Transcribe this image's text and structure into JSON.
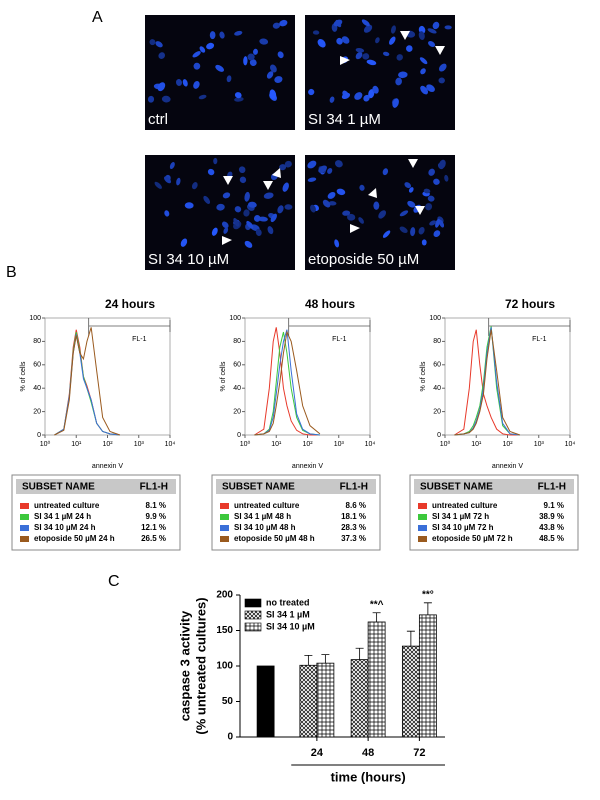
{
  "panel_labels": [
    "A",
    "B",
    "C"
  ],
  "images": [
    {
      "label": "ctrl"
    },
    {
      "label": "SI 34 1 µM"
    },
    {
      "label": "SI 34 10 µM"
    },
    {
      "label": "etoposide 50 µM"
    }
  ],
  "tables": [
    {
      "header": [
        "SUBSET NAME",
        "FL1-H"
      ],
      "rows": [
        [
          "untreated culture",
          "8.1 %"
        ],
        [
          "SI 34 1 µM 24 h",
          "9.9 %"
        ],
        [
          "SI 34 10 µM 24 h",
          "12.1 %"
        ],
        [
          "etoposide 50 µM 24 h",
          "26.5 %"
        ]
      ]
    },
    {
      "header": [
        "SUBSET NAME",
        "FL1-H"
      ],
      "rows": [
        [
          "untreated culture",
          "8.6 %"
        ],
        [
          "SI 34 1 µM 48 h",
          "18.1 %"
        ],
        [
          "SI 34 10 µM 48 h",
          "28.3 %"
        ],
        [
          "etoposide 50 µM 48 h",
          "37.3 %"
        ]
      ]
    },
    {
      "header": [
        "SUBSET NAME",
        "FL1-H"
      ],
      "rows": [
        [
          "untreated culture",
          "9.1 %"
        ],
        [
          "SI 34 1 µM 72 h",
          "38.9 %"
        ],
        [
          "SI 34 10 µM 72 h",
          "43.8 %"
        ],
        [
          "etoposide 50 µM 72 h",
          "48.5 %"
        ]
      ]
    }
  ],
  "chart_data": [
    {
      "type": "line",
      "title": "24 hours",
      "xlabel": "annexin V",
      "ylabel": "% of cells",
      "log_x": true,
      "xlim": [
        1,
        10000
      ],
      "xticks": [
        {
          "value": 1,
          "label": "10⁰"
        },
        {
          "value": 10,
          "label": "10¹"
        },
        {
          "value": 100,
          "label": "10²"
        },
        {
          "value": 1000,
          "label": "10³"
        },
        {
          "value": 10000,
          "label": "10⁴"
        }
      ],
      "ylim": [
        0,
        100
      ],
      "yticks": [
        0,
        20,
        40,
        60,
        80,
        100
      ],
      "gate": {
        "label": "FL-1",
        "range": [
          25,
          10000
        ]
      },
      "x": [
        2,
        4,
        6,
        8,
        10,
        13,
        17,
        22,
        30,
        45,
        70,
        120,
        250
      ],
      "series": [
        {
          "color": "#e8392a",
          "values": [
            0,
            5,
            35,
            75,
            90,
            75,
            50,
            42,
            30,
            10,
            3,
            1,
            0
          ]
        },
        {
          "color": "#3cc83c",
          "values": [
            0,
            5,
            33,
            72,
            88,
            72,
            50,
            40,
            28,
            10,
            3,
            1,
            0
          ]
        },
        {
          "color": "#3a6fd8",
          "values": [
            0,
            5,
            33,
            70,
            86,
            70,
            48,
            40,
            30,
            10,
            3,
            1,
            0
          ]
        },
        {
          "color": "#9a5a1e",
          "values": [
            0,
            4,
            30,
            70,
            85,
            70,
            65,
            80,
            92,
            55,
            15,
            3,
            0
          ]
        }
      ]
    },
    {
      "type": "line",
      "title": "48 hours",
      "xlabel": "annexin V",
      "ylabel": "% of cells",
      "log_x": true,
      "xlim": [
        1,
        10000
      ],
      "xticks": [
        {
          "value": 1,
          "label": "10⁰"
        },
        {
          "value": 10,
          "label": "10¹"
        },
        {
          "value": 100,
          "label": "10²"
        },
        {
          "value": 1000,
          "label": "10³"
        },
        {
          "value": 10000,
          "label": "10⁴"
        }
      ],
      "ylim": [
        0,
        100
      ],
      "yticks": [
        0,
        20,
        40,
        60,
        80,
        100
      ],
      "gate": {
        "label": "FL-1",
        "range": [
          25,
          10000
        ]
      },
      "x": [
        2,
        4,
        6,
        8,
        10,
        13,
        17,
        22,
        30,
        45,
        70,
        120,
        250
      ],
      "series": [
        {
          "color": "#e8392a",
          "values": [
            0,
            5,
            40,
            80,
            92,
            70,
            40,
            25,
            12,
            4,
            1,
            0,
            0
          ]
        },
        {
          "color": "#3cc83c",
          "values": [
            0,
            1,
            5,
            20,
            45,
            75,
            88,
            70,
            40,
            15,
            4,
            1,
            0
          ]
        },
        {
          "color": "#3a6fd8",
          "values": [
            0,
            1,
            4,
            15,
            35,
            60,
            80,
            90,
            55,
            18,
            5,
            1,
            0
          ]
        },
        {
          "color": "#9a5a1e",
          "values": [
            0,
            1,
            3,
            10,
            25,
            45,
            70,
            88,
            80,
            55,
            25,
            8,
            1
          ]
        }
      ]
    },
    {
      "type": "line",
      "title": "72 hours",
      "xlabel": "annexin V",
      "ylabel": "% of cells",
      "log_x": true,
      "xlim": [
        1,
        10000
      ],
      "xticks": [
        {
          "value": 1,
          "label": "10⁰"
        },
        {
          "value": 10,
          "label": "10¹"
        },
        {
          "value": 100,
          "label": "10²"
        },
        {
          "value": 1000,
          "label": "10³"
        },
        {
          "value": 10000,
          "label": "10⁴"
        }
      ],
      "ylim": [
        0,
        100
      ],
      "yticks": [
        0,
        20,
        40,
        60,
        80,
        100
      ],
      "gate": {
        "label": "FL-1",
        "range": [
          25,
          10000
        ]
      },
      "x": [
        2,
        4,
        6,
        8,
        10,
        13,
        17,
        22,
        30,
        45,
        70,
        120,
        250
      ],
      "series": [
        {
          "color": "#e8392a",
          "values": [
            0,
            5,
            40,
            80,
            90,
            60,
            35,
            25,
            15,
            5,
            1,
            0,
            0
          ]
        },
        {
          "color": "#3cc83c",
          "values": [
            0,
            1,
            3,
            8,
            15,
            25,
            45,
            75,
            93,
            40,
            8,
            1,
            0
          ]
        },
        {
          "color": "#3a6fd8",
          "values": [
            0,
            1,
            2,
            6,
            12,
            22,
            40,
            70,
            92,
            45,
            10,
            1,
            0
          ]
        },
        {
          "color": "#9a5a1e",
          "values": [
            0,
            1,
            2,
            5,
            10,
            20,
            35,
            65,
            90,
            55,
            15,
            3,
            0
          ]
        }
      ]
    },
    {
      "type": "bar",
      "xlabel": "time (hours)",
      "ylabel": [
        "caspase 3 activity",
        "(% untreated cultures)"
      ],
      "categories": [
        null,
        "24",
        "48",
        "72"
      ],
      "ylim": [
        0,
        200
      ],
      "yticks": [
        0,
        50,
        100,
        150,
        200
      ],
      "legend": "top-left",
      "series": [
        {
          "name": "no treated",
          "color": "#000000",
          "pattern": "solid",
          "values": [
            100,
            null,
            null,
            null
          ],
          "errors": [
            null,
            null,
            null,
            null
          ]
        },
        {
          "name": "SI 34 1 µM",
          "color": "#000000",
          "pattern": "crosshatch",
          "values": [
            null,
            101,
            109,
            128
          ],
          "errors": [
            null,
            14,
            16,
            21
          ]
        },
        {
          "name": "SI 34 10 µM",
          "color": "#000000",
          "pattern": "grid",
          "values": [
            null,
            104,
            162,
            172
          ],
          "errors": [
            null,
            12,
            13,
            17
          ],
          "value_annotations": [
            null,
            null,
            "**^",
            "**°"
          ]
        }
      ]
    }
  ]
}
